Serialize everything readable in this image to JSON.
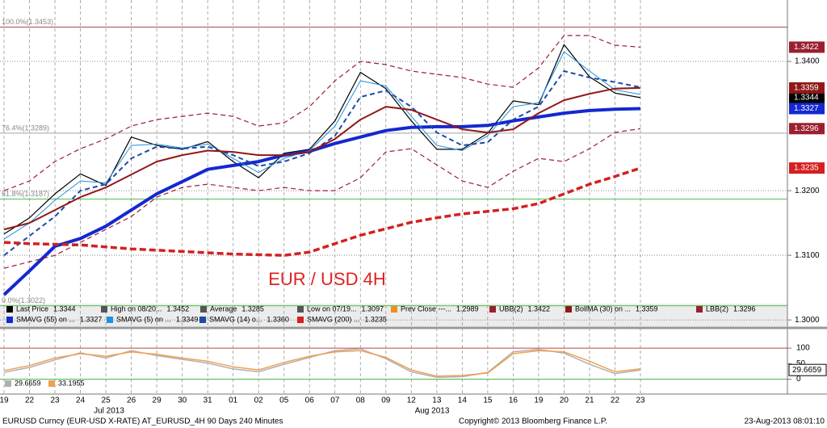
{
  "chart_data": [
    {
      "type": "line",
      "annotation": "EUR / USD 4H",
      "categories": [
        "19",
        "22",
        "23",
        "24",
        "25",
        "26",
        "29",
        "30",
        "31",
        "01",
        "02",
        "05",
        "06",
        "07",
        "08",
        "09",
        "12",
        "13",
        "14",
        "15",
        "16",
        "19",
        "20",
        "21",
        "22",
        "23"
      ],
      "months": [
        "Jul 2013",
        "Aug 2013"
      ],
      "ylim": [
        1.2989,
        1.3495
      ],
      "yticks": [
        {
          "value": 1.3,
          "label": "1.3000"
        },
        {
          "value": 1.31,
          "label": "1.3100"
        },
        {
          "value": 1.32,
          "label": "1.3200"
        },
        {
          "value": 1.34,
          "label": "1.3400"
        }
      ],
      "grid": true,
      "levels": [
        {
          "label": "100.0%(1.3453)",
          "value": 1.3453,
          "color": "#a04040"
        },
        {
          "label": "76.4%(1.3289)",
          "value": 1.3289,
          "color": "#a0a0a0"
        },
        {
          "label": "61.8%(1.3187)",
          "value": 1.3187,
          "color": "#50c050"
        },
        {
          "label": "0.0%(1.3022)",
          "value": 1.3022,
          "color": "#50c050"
        }
      ],
      "stats": [
        {
          "name": "High on 08/20...",
          "value": "1.3452"
        },
        {
          "name": "Average",
          "value": "1.3285"
        },
        {
          "name": "Low on 07/19...",
          "value": "1.3097"
        },
        {
          "name": "Prev Close ---...",
          "value": "1.2989"
        }
      ],
      "series": [
        {
          "name": "Last Price",
          "color": "#000000",
          "width": 1.2,
          "dash": "",
          "tag": true,
          "legend_value": "1.3344",
          "values": [
            1.3133,
            1.3158,
            1.3195,
            1.3226,
            1.3208,
            1.3283,
            1.327,
            1.3264,
            1.3276,
            1.3245,
            1.322,
            1.3258,
            1.3264,
            1.3308,
            1.3383,
            1.3358,
            1.3308,
            1.3264,
            1.3264,
            1.3289,
            1.3339,
            1.3333,
            1.3426,
            1.3376,
            1.3351,
            1.3344
          ]
        },
        {
          "name": "SMAVG (55) on ...",
          "color": "#1428d0",
          "width": 4,
          "dash": "",
          "tag": true,
          "legend_value": "1.3327",
          "values": [
            1.3039,
            1.3076,
            1.3114,
            1.3126,
            1.3145,
            1.317,
            1.3195,
            1.3214,
            1.3233,
            1.3239,
            1.3245,
            1.3255,
            1.3261,
            1.3273,
            1.3283,
            1.3293,
            1.3298,
            1.3299,
            1.3299,
            1.3301,
            1.3308,
            1.3314,
            1.332,
            1.3324,
            1.3326,
            1.3327
          ]
        },
        {
          "name": "SMAVG (5) on ...",
          "color": "#2090e0",
          "width": 1,
          "dash": "",
          "tag": false,
          "legend_value": "1.3349",
          "values": [
            1.3125,
            1.315,
            1.3185,
            1.3215,
            1.3212,
            1.327,
            1.3272,
            1.3266,
            1.3272,
            1.325,
            1.3228,
            1.325,
            1.3262,
            1.33,
            1.337,
            1.3362,
            1.3315,
            1.327,
            1.3262,
            1.3285,
            1.333,
            1.3336,
            1.3415,
            1.3385,
            1.3356,
            1.3349
          ]
        },
        {
          "name": "SMAVG (14) o...",
          "color": "#1c4aa8",
          "width": 2,
          "dash": "6 4",
          "tag": false,
          "legend_value": "1.3360",
          "values": [
            1.31,
            1.313,
            1.316,
            1.32,
            1.321,
            1.325,
            1.3268,
            1.3265,
            1.3268,
            1.3255,
            1.3238,
            1.3245,
            1.3258,
            1.3285,
            1.3345,
            1.3355,
            1.333,
            1.329,
            1.327,
            1.3275,
            1.331,
            1.333,
            1.3385,
            1.3375,
            1.3368,
            1.336
          ]
        },
        {
          "name": "SMAVG (200) ...",
          "color": "#d42020",
          "width": 3.5,
          "dash": "8 4",
          "tag": true,
          "legend_value": "1.3235",
          "values": [
            1.312,
            1.3118,
            1.3117,
            1.3116,
            1.3113,
            1.311,
            1.3108,
            1.3106,
            1.3104,
            1.3102,
            1.3101,
            1.31,
            1.3105,
            1.3118,
            1.3131,
            1.3141,
            1.3151,
            1.3158,
            1.3164,
            1.3168,
            1.3172,
            1.318,
            1.3195,
            1.321,
            1.3222,
            1.3235
          ]
        },
        {
          "name": "UBB(2)",
          "color": "#9a2030",
          "width": 1.2,
          "dash": "6 4",
          "tag": true,
          "legend_value": "1.3422",
          "values": [
            1.32,
            1.3215,
            1.3245,
            1.3265,
            1.328,
            1.33,
            1.331,
            1.3315,
            1.332,
            1.3315,
            1.33,
            1.3305,
            1.333,
            1.337,
            1.34,
            1.3395,
            1.3385,
            1.338,
            1.3375,
            1.3365,
            1.336,
            1.339,
            1.344,
            1.344,
            1.3425,
            1.3422
          ]
        },
        {
          "name": "BollMA (30) on ...",
          "color": "#901818",
          "width": 2,
          "dash": "",
          "tag": true,
          "legend_value": "1.3359",
          "values": [
            1.314,
            1.315,
            1.317,
            1.319,
            1.3205,
            1.3225,
            1.3245,
            1.3255,
            1.3262,
            1.326,
            1.3255,
            1.3255,
            1.326,
            1.328,
            1.331,
            1.333,
            1.3325,
            1.331,
            1.3295,
            1.329,
            1.3295,
            1.332,
            1.334,
            1.335,
            1.3358,
            1.3359
          ]
        },
        {
          "name": "LBB(2)",
          "color": "#9a2030",
          "width": 1.2,
          "dash": "6 4",
          "tag": true,
          "legend_value": "1.3296",
          "values": [
            1.308,
            1.309,
            1.31,
            1.312,
            1.314,
            1.316,
            1.319,
            1.3205,
            1.321,
            1.3205,
            1.32,
            1.3205,
            1.32,
            1.32,
            1.322,
            1.326,
            1.3265,
            1.324,
            1.3215,
            1.3205,
            1.323,
            1.325,
            1.3245,
            1.3265,
            1.329,
            1.3296
          ]
        }
      ]
    },
    {
      "type": "line",
      "ylim": [
        -40,
        160
      ],
      "yticks": [
        0,
        50,
        100
      ],
      "levels": [
        {
          "value": 100,
          "color": "#c04040"
        },
        {
          "value": 0,
          "color": "#40b040"
        }
      ],
      "series": [
        {
          "color": "#b0b0b0",
          "values": [
            22,
            38,
            62,
            85,
            68,
            92,
            76,
            64,
            52,
            33,
            24,
            48,
            70,
            92,
            98,
            66,
            24,
            6,
            8,
            22,
            88,
            96,
            84,
            48,
            18,
            29.6659
          ]
        },
        {
          "color": "#f0a050",
          "values": [
            28,
            44,
            68,
            82,
            74,
            88,
            80,
            68,
            58,
            40,
            30,
            54,
            74,
            88,
            92,
            70,
            30,
            10,
            12,
            20,
            82,
            92,
            88,
            58,
            24,
            33.1955
          ]
        }
      ]
    }
  ],
  "footer": {
    "left": "EURUSD Curncy (EUR-USD X-RATE) AT_EURUSD_4H 90 Days 240 Minutes",
    "center": "Copyright© 2013 Bloomberg Finance L.P.",
    "right": "23-Aug-2013 08:01:10"
  }
}
